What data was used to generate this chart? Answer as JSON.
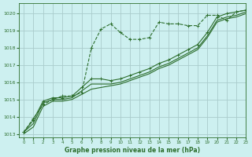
{
  "title": "Graphe pression niveau de la mer (hPa)",
  "bg_color": "#cdf0f0",
  "grid_color": "#aacccc",
  "line_color": "#2d6e2d",
  "xlim": [
    -0.5,
    23
  ],
  "ylim": [
    1012.8,
    1020.6
  ],
  "yticks": [
    1013,
    1014,
    1015,
    1016,
    1017,
    1018,
    1019,
    1020
  ],
  "xticks": [
    0,
    1,
    2,
    3,
    4,
    5,
    6,
    7,
    8,
    9,
    10,
    11,
    12,
    13,
    14,
    15,
    16,
    17,
    18,
    19,
    20,
    21,
    22,
    23
  ],
  "series": [
    {
      "x": [
        0,
        1,
        2,
        3,
        4,
        5,
        6,
        7,
        8,
        9,
        10,
        11,
        12,
        13,
        14,
        15,
        16,
        17,
        18,
        19,
        20,
        21,
        22,
        23
      ],
      "y": [
        1013.1,
        1013.9,
        1014.7,
        1015.0,
        1015.2,
        1015.2,
        1015.4,
        1018.0,
        1019.1,
        1019.4,
        1018.9,
        1018.5,
        1018.5,
        1018.6,
        1019.5,
        1019.4,
        1019.4,
        1019.3,
        1019.3,
        1019.9,
        1019.9,
        1019.6,
        1020.1,
        1020.2
      ],
      "style": "--",
      "marker": "+",
      "lw": 0.8
    },
    {
      "x": [
        0,
        1,
        2,
        3,
        4,
        5,
        6,
        7,
        8,
        9,
        10,
        11,
        12,
        13,
        14,
        15,
        16,
        17,
        18,
        19,
        20,
        21,
        22,
        23
      ],
      "y": [
        1013.1,
        1013.8,
        1014.9,
        1015.1,
        1015.1,
        1015.2,
        1015.7,
        1016.2,
        1016.2,
        1016.1,
        1016.2,
        1016.4,
        1016.6,
        1016.8,
        1017.1,
        1017.3,
        1017.6,
        1017.9,
        1018.2,
        1018.9,
        1019.8,
        1020.0,
        1020.1,
        1020.2
      ],
      "style": "-",
      "marker": "+",
      "lw": 0.8
    },
    {
      "x": [
        0,
        1,
        2,
        3,
        4,
        5,
        6,
        7,
        8,
        9,
        10,
        11,
        12,
        13,
        14,
        15,
        16,
        17,
        18,
        19,
        20,
        21,
        22,
        23
      ],
      "y": [
        1013.1,
        1013.6,
        1014.8,
        1015.0,
        1015.0,
        1015.1,
        1015.5,
        1015.9,
        1015.9,
        1015.9,
        1016.0,
        1016.2,
        1016.4,
        1016.6,
        1016.9,
        1017.1,
        1017.4,
        1017.7,
        1018.0,
        1018.7,
        1019.6,
        1019.8,
        1019.9,
        1020.1
      ],
      "style": "-",
      "marker": null,
      "lw": 0.8
    },
    {
      "x": [
        0,
        1,
        2,
        3,
        4,
        5,
        6,
        7,
        8,
        9,
        10,
        11,
        12,
        13,
        14,
        15,
        16,
        17,
        18,
        19,
        20,
        21,
        22,
        23
      ],
      "y": [
        1013.0,
        1013.4,
        1014.6,
        1014.9,
        1014.9,
        1015.0,
        1015.3,
        1015.6,
        1015.7,
        1015.8,
        1015.9,
        1016.1,
        1016.3,
        1016.5,
        1016.8,
        1017.0,
        1017.3,
        1017.6,
        1017.9,
        1018.6,
        1019.5,
        1019.7,
        1019.8,
        1020.0
      ],
      "style": "-",
      "marker": null,
      "lw": 0.8
    }
  ]
}
